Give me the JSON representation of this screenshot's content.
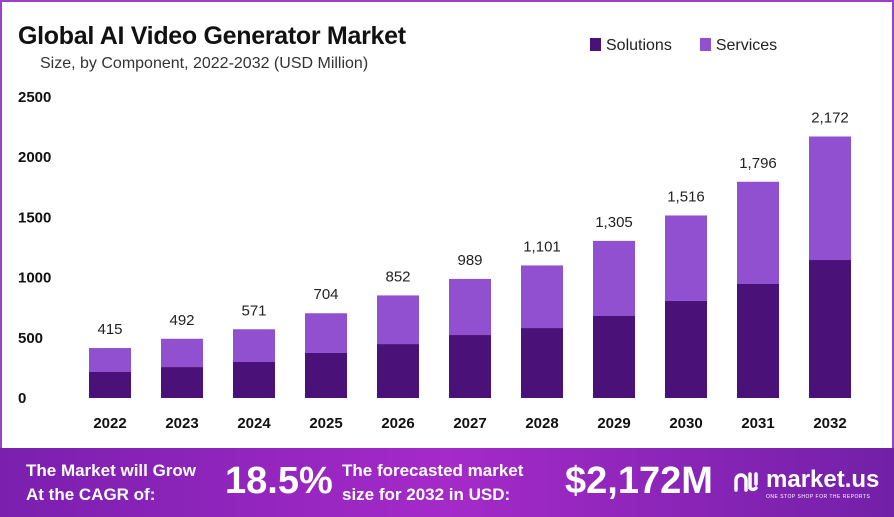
{
  "chart_data": {
    "type": "bar",
    "stacked": true,
    "title": "Global AI Video Generator Market",
    "subtitle": "Size, by Component, 2022-2032 (USD Million)",
    "categories": [
      "2022",
      "2023",
      "2024",
      "2025",
      "2026",
      "2027",
      "2028",
      "2029",
      "2030",
      "2031",
      "2032"
    ],
    "series": [
      {
        "name": "Solutions",
        "color": "#4a1178",
        "values": [
          216,
          257,
          299,
          374,
          448,
          523,
          581,
          681,
          806,
          947,
          1146
        ]
      },
      {
        "name": "Services",
        "color": "#9150d0",
        "values": [
          199,
          235,
          272,
          330,
          404,
          466,
          520,
          624,
          710,
          849,
          1026
        ]
      }
    ],
    "totals": [
      415,
      492,
      571,
      704,
      852,
      989,
      1101,
      1305,
      1516,
      1796,
      2172
    ],
    "total_labels": [
      "415",
      "492",
      "571",
      "704",
      "852",
      "989",
      "1,101",
      "1,305",
      "1,516",
      "1,796",
      "2,172"
    ],
    "yticks": [
      "0",
      "500",
      "1000",
      "1500",
      "2000",
      "2500"
    ],
    "ylim": [
      0,
      2500
    ],
    "grid": false,
    "legend": "top-right"
  },
  "footer": {
    "cagr_text_1": "The Market will Grow",
    "cagr_text_2": "At the CAGR of:",
    "cagr_value": "18.5%",
    "forecast_text_1": "The forecasted market",
    "forecast_text_2": "size for 2032 in USD:",
    "forecast_value": "$2,172M",
    "logo_name": "market.us",
    "logo_tagline": "ONE STOP SHOP FOR THE REPORTS"
  }
}
